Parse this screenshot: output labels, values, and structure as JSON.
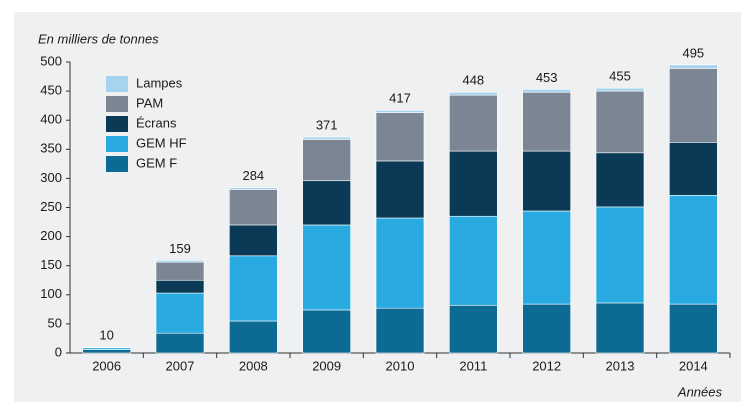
{
  "chart_data": {
    "type": "bar",
    "stacked": true,
    "title": "En milliers de tonnes",
    "x_label": "Années",
    "categories": [
      "2006",
      "2007",
      "2008",
      "2009",
      "2010",
      "2011",
      "2012",
      "2013",
      "2014"
    ],
    "series": [
      {
        "name": "GEM F",
        "color": "#0c6a93",
        "values": [
          6,
          34,
          55,
          74,
          77,
          82,
          84,
          86,
          84
        ]
      },
      {
        "name": "GEM HF",
        "color": "#29abe2",
        "values": [
          3,
          69,
          112,
          146,
          155,
          153,
          160,
          165,
          187
        ]
      },
      {
        "name": "Écrans",
        "color": "#0b3a56",
        "values": [
          0,
          22,
          53,
          76,
          98,
          112,
          103,
          93,
          91
        ]
      },
      {
        "name": "PAM",
        "color": "#7b8594",
        "values": [
          0,
          31,
          61,
          71,
          83,
          96,
          101,
          106,
          127
        ]
      },
      {
        "name": "Lampes",
        "color": "#a6d4f0",
        "values": [
          1,
          3,
          3,
          4,
          4,
          5,
          5,
          5,
          6
        ]
      }
    ],
    "totals": [
      10,
      159,
      284,
      371,
      417,
      448,
      453,
      455,
      495
    ],
    "ylim": [
      0,
      500
    ],
    "yticks": [
      0,
      50,
      100,
      150,
      200,
      250,
      300,
      350,
      400,
      450,
      500
    ],
    "legend": "upper left"
  }
}
